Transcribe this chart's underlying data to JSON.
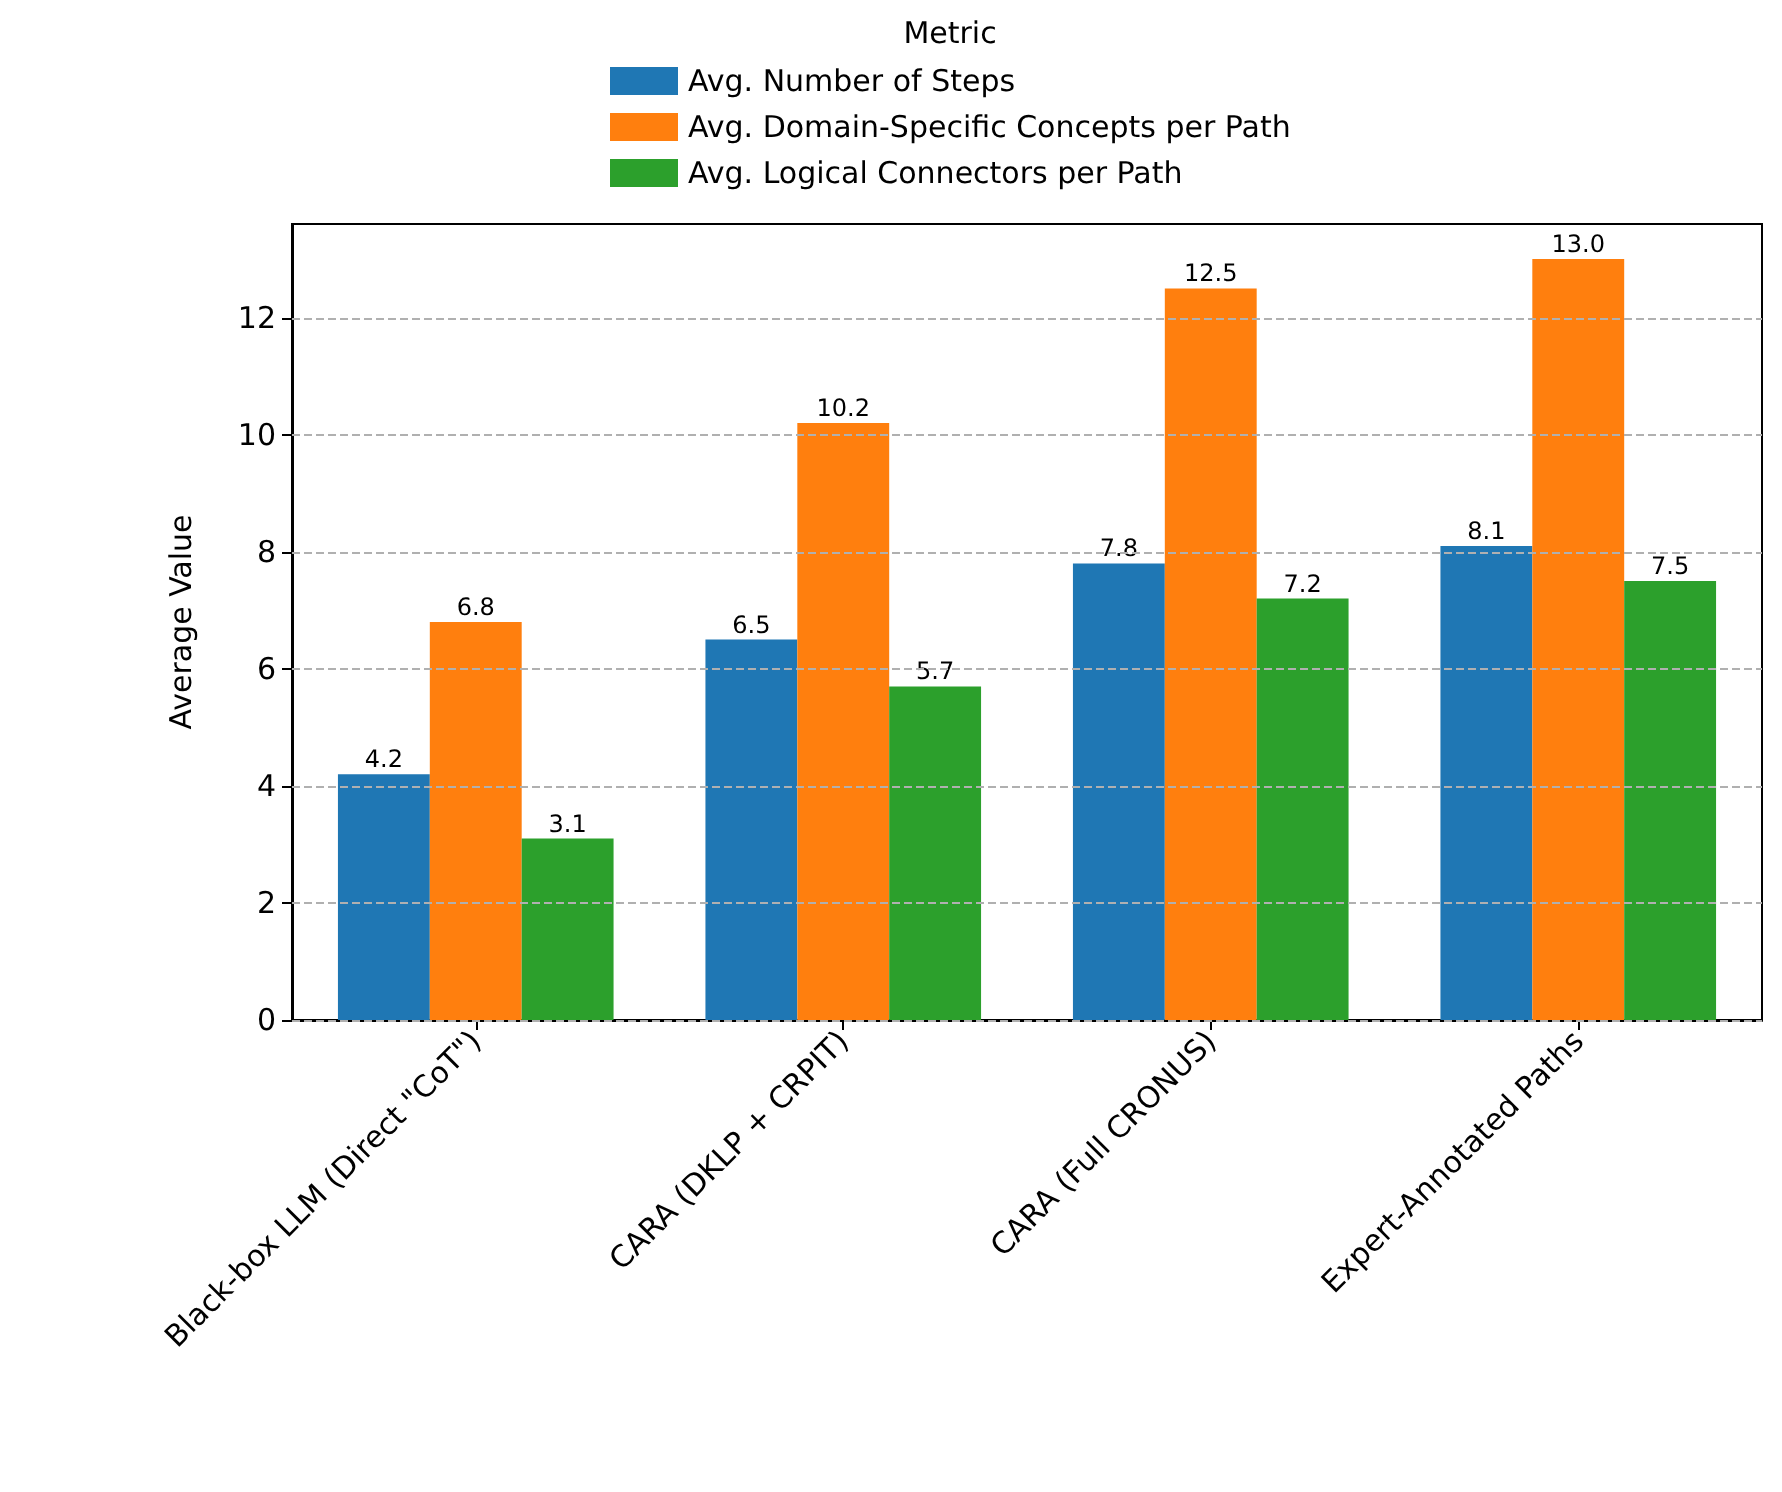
{
  "chart_data": {
    "type": "bar",
    "categories": [
      "Black-box LLM (Direct \"CoT\")",
      "CARA (DKLP + CRPIT)",
      "CARA (Full CRONUS)",
      "Expert-Annotated Paths"
    ],
    "series": [
      {
        "name": "Avg. Number of Steps",
        "color": "#1f77b4",
        "values": [
          4.2,
          6.5,
          7.8,
          8.1
        ],
        "value_labels": [
          "4.2",
          "6.5",
          "7.8",
          "8.1"
        ]
      },
      {
        "name": "Avg. Domain-Specific Concepts per Path",
        "color": "#ff7f0e",
        "values": [
          6.8,
          10.2,
          12.5,
          13.0
        ],
        "value_labels": [
          "6.8",
          "10.2",
          "12.5",
          "13.0"
        ]
      },
      {
        "name": "Avg. Logical Connectors per Path",
        "color": "#2ca02c",
        "values": [
          3.1,
          5.7,
          7.2,
          7.5
        ],
        "value_labels": [
          "3.1",
          "5.7",
          "7.2",
          "7.5"
        ]
      }
    ],
    "ylabel": "Average Value",
    "legend_title": "Metric",
    "ylim": [
      0,
      13.6
    ],
    "yticks": [
      0,
      2,
      4,
      6,
      8,
      10,
      12
    ],
    "grid": "y",
    "legend": "top"
  }
}
